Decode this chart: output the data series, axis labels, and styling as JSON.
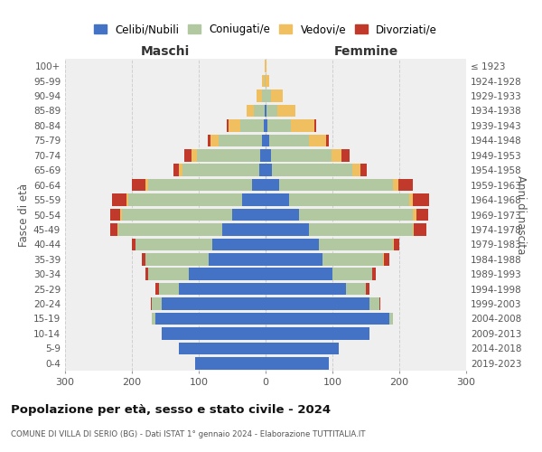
{
  "age_groups": [
    "0-4",
    "5-9",
    "10-14",
    "15-19",
    "20-24",
    "25-29",
    "30-34",
    "35-39",
    "40-44",
    "45-49",
    "50-54",
    "55-59",
    "60-64",
    "65-69",
    "70-74",
    "75-79",
    "80-84",
    "85-89",
    "90-94",
    "95-99",
    "100+"
  ],
  "birth_years": [
    "2019-2023",
    "2014-2018",
    "2009-2013",
    "2004-2008",
    "1999-2003",
    "1994-1998",
    "1989-1993",
    "1984-1988",
    "1979-1983",
    "1974-1978",
    "1969-1973",
    "1964-1968",
    "1959-1963",
    "1954-1958",
    "1949-1953",
    "1944-1948",
    "1939-1943",
    "1934-1938",
    "1929-1933",
    "1924-1928",
    "≤ 1923"
  ],
  "colors": {
    "celibi": "#4472c4",
    "coniugati": "#b2c8a0",
    "vedovi": "#f0c060",
    "divorziati": "#c0392b"
  },
  "maschi": {
    "celibi": [
      105,
      130,
      155,
      165,
      155,
      130,
      115,
      85,
      80,
      65,
      50,
      35,
      20,
      10,
      8,
      5,
      3,
      2,
      0,
      0,
      0
    ],
    "coniugati": [
      0,
      0,
      0,
      5,
      15,
      30,
      60,
      95,
      115,
      155,
      165,
      170,
      155,
      115,
      95,
      65,
      35,
      15,
      5,
      2,
      0
    ],
    "vedovi": [
      0,
      0,
      0,
      0,
      0,
      0,
      0,
      0,
      0,
      1,
      2,
      3,
      5,
      5,
      8,
      12,
      18,
      12,
      8,
      3,
      1
    ],
    "divorziati": [
      0,
      0,
      0,
      0,
      2,
      5,
      5,
      5,
      5,
      12,
      15,
      22,
      20,
      8,
      10,
      5,
      2,
      0,
      0,
      0,
      0
    ]
  },
  "femmine": {
    "celibi": [
      95,
      110,
      155,
      185,
      155,
      120,
      100,
      85,
      80,
      65,
      50,
      35,
      20,
      10,
      8,
      5,
      3,
      2,
      0,
      0,
      0
    ],
    "coniugati": [
      0,
      0,
      0,
      5,
      15,
      30,
      60,
      90,
      110,
      155,
      170,
      180,
      170,
      120,
      90,
      60,
      35,
      15,
      8,
      0,
      0
    ],
    "vedovi": [
      0,
      0,
      0,
      0,
      0,
      0,
      0,
      2,
      2,
      2,
      5,
      5,
      8,
      12,
      15,
      25,
      35,
      28,
      18,
      5,
      2
    ],
    "divorziati": [
      0,
      0,
      0,
      0,
      2,
      5,
      5,
      8,
      8,
      18,
      18,
      25,
      22,
      10,
      12,
      5,
      2,
      0,
      0,
      0,
      0
    ]
  },
  "title": "Popolazione per età, sesso e stato civile - 2024",
  "subtitle": "COMUNE DI VILLA DI SERIO (BG) - Dati ISTAT 1° gennaio 2024 - Elaborazione TUTTITALIA.IT",
  "label_maschi": "Maschi",
  "label_femmine": "Femmine",
  "ylabel_left": "Fasce di età",
  "ylabel_right": "Anni di nascita",
  "xlim": 300,
  "bg_color": "#efefef",
  "grid_color": "#d0d0d0"
}
